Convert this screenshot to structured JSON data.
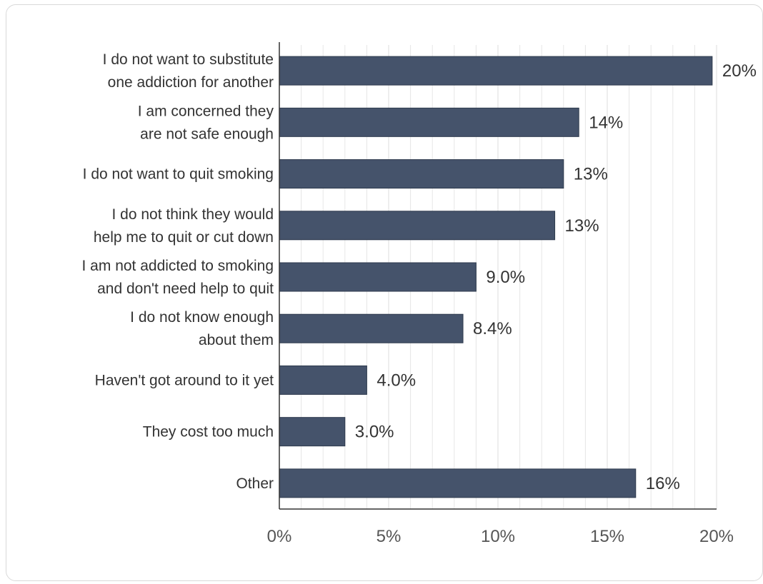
{
  "chart_data": {
    "type": "bar",
    "orientation": "horizontal",
    "title": "",
    "xlabel": "",
    "ylabel": "",
    "categories": [
      [
        "I do not want to substitute",
        "one addiction for another"
      ],
      [
        "I am concerned they",
        "are not safe enough"
      ],
      [
        "I do not want to quit smoking"
      ],
      [
        "I do not think they would",
        "help me to quit or cut down"
      ],
      [
        "I am not addicted to smoking",
        "and don't need help to quit"
      ],
      [
        "I do not know enough",
        "about them"
      ],
      [
        "Haven't got around to it yet"
      ],
      [
        "They cost too much"
      ],
      [
        "Other"
      ]
    ],
    "values": [
      19.8,
      13.7,
      13.0,
      12.6,
      9.0,
      8.4,
      4.0,
      3.0,
      16.3
    ],
    "value_labels": [
      "20%",
      "14%",
      "13%",
      "13%",
      "9.0%",
      "8.4%",
      "4.0%",
      "3.0%",
      "16%"
    ],
    "xlim": [
      0,
      20
    ],
    "x_ticks": [
      0,
      5,
      10,
      15,
      20
    ],
    "x_tick_labels": [
      "0%",
      "5%",
      "10%",
      "15%",
      "20%"
    ],
    "grid": "vertical",
    "bar_color": "#45536b",
    "grid_color": "#e6e6e6"
  }
}
